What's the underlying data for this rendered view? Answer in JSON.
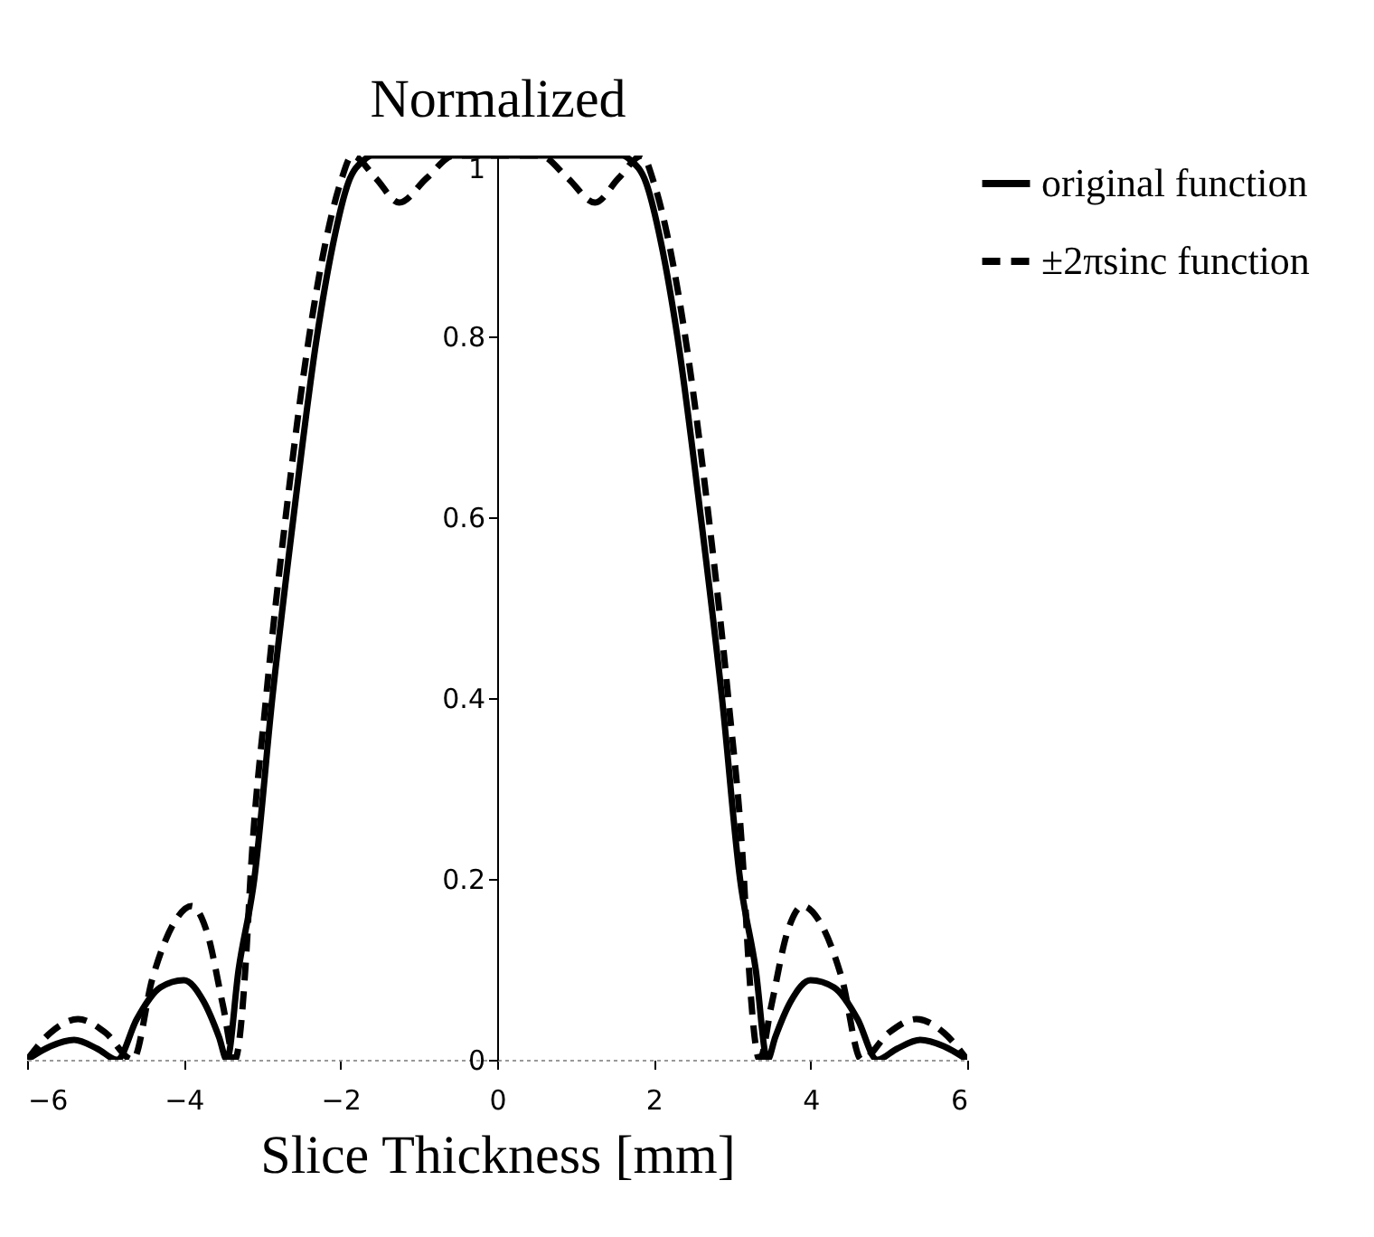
{
  "chart_data": {
    "type": "line",
    "xlabel": "Slice Thickness [mm]",
    "ylabel": "Normalized",
    "xlim": [
      -6,
      6
    ],
    "xticks": [
      -6,
      -4,
      -2,
      0,
      2,
      4,
      6
    ],
    "ylim": [
      0,
      1
    ],
    "yticks": [
      0,
      0.2,
      0.4,
      0.6,
      0.8,
      1
    ],
    "legend": "right",
    "series": [
      {
        "name": "original function",
        "color": "#000000",
        "line_style": "solid",
        "x": [
          -6,
          -5.7,
          -5.4,
          -5.1,
          -4.85,
          -4.6,
          -4.3,
          -4.0,
          -3.75,
          -3.55,
          -3.45,
          -3.3,
          -3.1,
          -2.87,
          -2.6,
          -2.3,
          -2.1,
          -1.9,
          -1.7,
          -1.6,
          1.6,
          1.7,
          1.9,
          2.1,
          2.3,
          2.6,
          2.87,
          3.1,
          3.3,
          3.45,
          3.55,
          3.75,
          4.0,
          4.3,
          4.6,
          4.85,
          5.1,
          5.4,
          5.7,
          6
        ],
        "values": [
          0,
          0.015,
          0.022,
          0.012,
          0,
          0.045,
          0.08,
          0.088,
          0.065,
          0.025,
          0,
          0.1,
          0.2,
          0.4,
          0.6,
          0.8,
          0.9,
          0.97,
          0.995,
          1,
          1,
          0.995,
          0.97,
          0.9,
          0.8,
          0.6,
          0.4,
          0.2,
          0.1,
          0,
          0.025,
          0.065,
          0.088,
          0.08,
          0.045,
          0,
          0.012,
          0.022,
          0.015,
          0
        ]
      },
      {
        "name": "±2πsinc function",
        "color": "#000000",
        "line_style": "dashed",
        "x": [
          -6,
          -5.7,
          -5.35,
          -5.0,
          -4.65,
          -4.4,
          -4.1,
          -3.9,
          -3.7,
          -3.5,
          -3.35,
          -3.2,
          -3.15,
          -2.95,
          -2.7,
          -2.4,
          -2.2,
          -2.0,
          -1.85,
          -1.55,
          -1.25,
          -0.9,
          -0.55,
          0.55,
          0.9,
          1.25,
          1.55,
          1.85,
          2.0,
          2.2,
          2.4,
          2.7,
          2.95,
          3.15,
          3.2,
          3.35,
          3.5,
          3.7,
          3.9,
          4.1,
          4.4,
          4.65,
          5.0,
          5.35,
          5.7,
          6
        ],
        "values": [
          0,
          0.03,
          0.045,
          0.03,
          0,
          0.09,
          0.155,
          0.17,
          0.14,
          0.06,
          0,
          0.12,
          0.2,
          0.4,
          0.6,
          0.8,
          0.9,
          0.97,
          1,
          0.975,
          0.948,
          0.975,
          1,
          1,
          0.975,
          0.948,
          0.975,
          1,
          0.97,
          0.9,
          0.8,
          0.6,
          0.4,
          0.2,
          0.12,
          0,
          0.06,
          0.14,
          0.17,
          0.155,
          0.09,
          0,
          0.03,
          0.045,
          0.03,
          0
        ]
      }
    ]
  }
}
